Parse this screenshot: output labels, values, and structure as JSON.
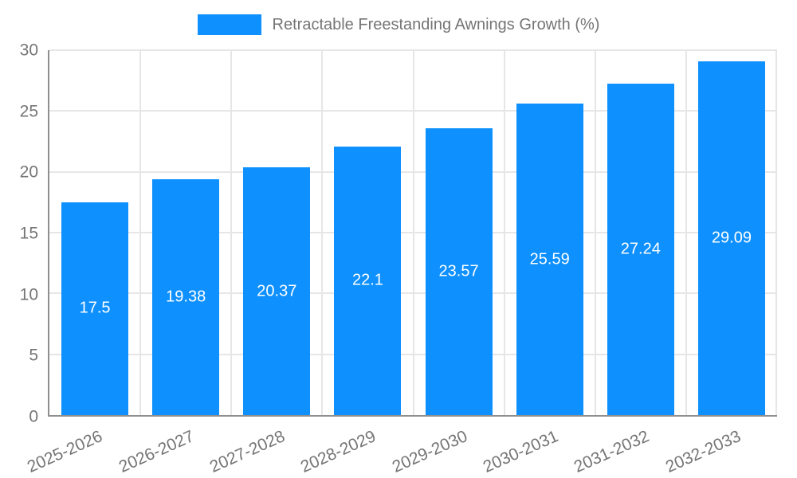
{
  "chart_data": {
    "type": "bar",
    "title": "Retractable Freestanding Awnings Growth (%)",
    "categories": [
      "2025-2026",
      "2026-2027",
      "2027-2028",
      "2028-2029",
      "2029-2030",
      "2030-2031",
      "2031-2032",
      "2032-2033"
    ],
    "values": [
      17.5,
      19.38,
      20.37,
      22.1,
      23.57,
      25.59,
      27.24,
      29.09
    ],
    "value_labels": [
      "17.5",
      "19.38",
      "20.37",
      "22.1",
      "23.57",
      "25.59",
      "27.24",
      "29.09"
    ],
    "xlabel": "",
    "ylabel": "",
    "ylim": [
      0,
      30
    ],
    "yticks": [
      0,
      5,
      10,
      15,
      20,
      25,
      30
    ],
    "grid": true,
    "legend_position": "top",
    "colors": {
      "bar": "#0e90ff",
      "axis_text": "#757575",
      "gridline": "#e6e6e6",
      "axis_line": "#8f8f8f",
      "value_label": "#ffffff",
      "background": "#ffffff"
    }
  }
}
